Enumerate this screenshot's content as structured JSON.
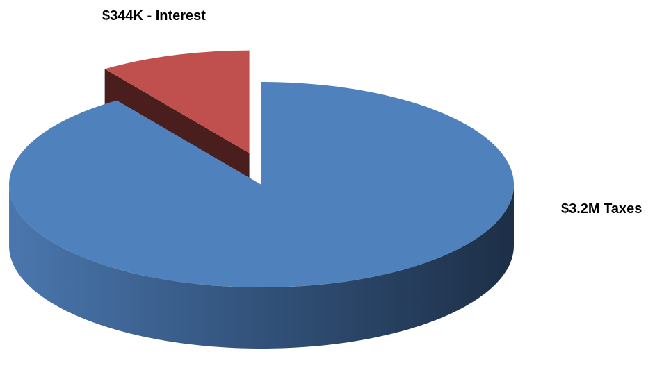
{
  "chart_data": {
    "type": "pie",
    "style": "3d-exploded",
    "title": "",
    "start_angle_deg": 270,
    "slices": [
      {
        "name": "Taxes",
        "value": 3200000,
        "label": "$3.2M Taxes",
        "color": "#4F81BD",
        "exploded": false
      },
      {
        "name": "Interest",
        "value": 344000,
        "label": "$344K - Interest",
        "color": "#C0504D",
        "exploded": true
      }
    ],
    "legend": "none"
  }
}
